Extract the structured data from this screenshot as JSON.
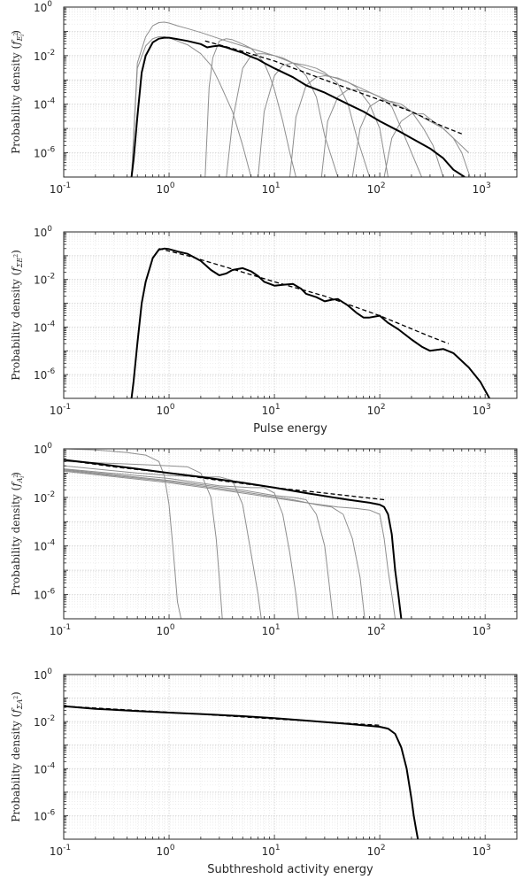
{
  "chart_data": [
    {
      "type": "line",
      "panel": 1,
      "xscale": "log",
      "yscale": "log",
      "xlim": [
        0.1,
        2000
      ],
      "ylim": [
        1e-07,
        1
      ],
      "grid": true,
      "xlabel": "",
      "ylabel": {
        "main": "Probability density",
        "sym": "f",
        "sub": "E",
        "sub_sup": "2",
        "sub_index": "i"
      },
      "xticks": [
        {
          "base": "10",
          "exp": "-1"
        },
        {
          "base": "10",
          "exp": "0"
        },
        {
          "base": "10",
          "exp": "1"
        },
        {
          "base": "10",
          "exp": "2"
        },
        {
          "base": "10",
          "exp": "3"
        }
      ],
      "yticks": [
        {
          "base": "10",
          "exp": "-6"
        },
        {
          "base": "10",
          "exp": "-4"
        },
        {
          "base": "10",
          "exp": "-2"
        },
        {
          "base": "10",
          "exp": "0"
        }
      ],
      "series": [
        {
          "style": "thin-gray",
          "x": [
            0.44,
            0.5,
            0.6,
            0.7,
            0.8,
            0.9,
            1.0,
            1.2,
            1.5,
            2,
            3,
            5,
            10,
            20,
            50,
            100,
            200,
            400,
            700
          ],
          "y": [
            1e-07,
            0.005,
            0.06,
            0.17,
            0.23,
            0.24,
            0.22,
            0.17,
            0.13,
            0.09,
            0.05,
            0.025,
            0.01,
            0.003,
            0.0008,
            0.0002,
            5e-05,
            1e-05,
            1e-06
          ]
        },
        {
          "style": "thin-gray",
          "x": [
            0.44,
            0.5,
            0.6,
            0.7,
            0.8,
            0.9,
            1.0,
            1.2,
            1.5,
            2.0,
            2.5,
            3.0,
            4.0,
            5.0,
            6.0,
            7.0,
            8.0
          ],
          "y": [
            1e-07,
            0.003,
            0.025,
            0.05,
            0.06,
            0.06,
            0.055,
            0.04,
            0.028,
            0.012,
            0.004,
            0.0008,
            5e-05,
            2e-06,
            1e-07,
            1e-07,
            1e-07
          ]
        },
        {
          "style": "thin-gray",
          "x": [
            2.2,
            2.4,
            2.6,
            3,
            3.5,
            4,
            5,
            6,
            7,
            8,
            9,
            10,
            12,
            14,
            16,
            20
          ],
          "y": [
            1e-07,
            0.0005,
            0.008,
            0.04,
            0.05,
            0.045,
            0.03,
            0.02,
            0.01,
            0.005,
            0.0015,
            0.0004,
            2e-05,
            1e-06,
            1e-07,
            1e-07
          ]
        },
        {
          "style": "thin-gray",
          "x": [
            3.5,
            4,
            5,
            6,
            7,
            8,
            10,
            12,
            15,
            20,
            25,
            30,
            40
          ],
          "y": [
            1e-07,
            2e-05,
            0.003,
            0.01,
            0.012,
            0.012,
            0.01,
            0.008,
            0.005,
            0.0015,
            0.0002,
            5e-06,
            1e-07
          ]
        },
        {
          "style": "thin-gray",
          "x": [
            7,
            8,
            10,
            12,
            15,
            20,
            25,
            30,
            40,
            50,
            60,
            80
          ],
          "y": [
            1e-07,
            5e-05,
            0.0015,
            0.004,
            0.005,
            0.004,
            0.003,
            0.002,
            0.0007,
            0.0001,
            5e-06,
            1e-07
          ]
        },
        {
          "style": "thin-gray",
          "x": [
            14,
            16,
            20,
            25,
            30,
            40,
            50,
            60,
            80,
            100,
            120,
            150
          ],
          "y": [
            1e-07,
            3e-05,
            0.0006,
            0.0013,
            0.0015,
            0.0012,
            0.0008,
            0.0005,
            0.0001,
            1e-05,
            1e-07,
            1e-07
          ]
        },
        {
          "style": "thin-gray",
          "x": [
            28,
            32,
            40,
            50,
            60,
            80,
            100,
            130,
            160,
            200,
            250
          ],
          "y": [
            1e-07,
            2e-05,
            0.0002,
            0.0004,
            0.0004,
            0.0003,
            0.0002,
            8e-05,
            1e-05,
            1e-06,
            1e-07
          ]
        },
        {
          "style": "thin-gray",
          "x": [
            55,
            65,
            80,
            100,
            130,
            160,
            200,
            260,
            320,
            400
          ],
          "y": [
            1e-07,
            1e-05,
            8e-05,
            0.00015,
            0.00013,
            0.0001,
            5e-05,
            1e-05,
            2e-06,
            1e-07
          ]
        },
        {
          "style": "thin-gray",
          "x": [
            110,
            130,
            160,
            200,
            260,
            320,
            400,
            500,
            600,
            720
          ],
          "y": [
            1e-07,
            4e-06,
            2e-05,
            4e-05,
            4e-05,
            2e-05,
            1e-05,
            4e-06,
            1e-06,
            1e-07
          ]
        },
        {
          "style": "thick-black",
          "x": [
            0.44,
            0.46,
            0.5,
            0.55,
            0.6,
            0.7,
            0.8,
            0.9,
            1.0,
            1.2,
            1.5,
            2.0,
            2.3,
            2.6,
            3.0,
            3.5,
            4.0,
            5.0,
            6.0,
            7.0,
            8.0,
            10,
            15,
            20,
            30,
            50,
            70,
            100,
            150,
            200,
            300,
            400,
            500,
            640
          ],
          "y": [
            1e-07,
            5e-07,
            3e-05,
            0.002,
            0.01,
            0.035,
            0.05,
            0.055,
            0.055,
            0.048,
            0.04,
            0.03,
            0.022,
            0.024,
            0.026,
            0.022,
            0.018,
            0.013,
            0.009,
            0.007,
            0.005,
            0.003,
            0.0013,
            0.0006,
            0.0003,
            0.0001,
            5e-05,
            2e-05,
            8e-06,
            4e-06,
            1.5e-06,
            6e-07,
            2e-07,
            1e-07
          ]
        },
        {
          "style": "dashed",
          "x": [
            2.2,
            5,
            10,
            30,
            100,
            200,
            400,
            600
          ],
          "y": [
            0.04,
            0.015,
            0.006,
            0.001,
            0.00015,
            5e-05,
            1.2e-05,
            6e-06
          ]
        }
      ]
    },
    {
      "type": "line",
      "panel": 2,
      "xscale": "log",
      "yscale": "log",
      "xlim": [
        0.1,
        2000
      ],
      "ylim": [
        1e-07,
        1
      ],
      "grid": true,
      "xlabel": "Pulse energy",
      "ylabel": {
        "main": "Probability density",
        "sym": "f",
        "sub": "ΣE",
        "sub_sup": "2",
        "sub_index": ""
      },
      "xticks": [
        {
          "base": "10",
          "exp": "-1"
        },
        {
          "base": "10",
          "exp": "0"
        },
        {
          "base": "10",
          "exp": "1"
        },
        {
          "base": "10",
          "exp": "2"
        },
        {
          "base": "10",
          "exp": "3"
        }
      ],
      "yticks": [
        {
          "base": "10",
          "exp": "-6"
        },
        {
          "base": "10",
          "exp": "-4"
        },
        {
          "base": "10",
          "exp": "-2"
        },
        {
          "base": "10",
          "exp": "0"
        }
      ],
      "series": [
        {
          "style": "thick-black",
          "x": [
            0.44,
            0.46,
            0.5,
            0.55,
            0.6,
            0.7,
            0.8,
            0.9,
            1.0,
            1.2,
            1.5,
            2.0,
            2.5,
            3.0,
            3.5,
            4.0,
            5.0,
            6.0,
            7.0,
            8.0,
            10,
            12,
            15,
            18,
            20,
            25,
            30,
            35,
            40,
            50,
            60,
            70,
            80,
            100,
            120,
            150,
            200,
            250,
            300,
            400,
            500,
            700,
            900,
            1100
          ],
          "y": [
            1e-07,
            5e-07,
            2e-05,
            0.001,
            0.008,
            0.08,
            0.18,
            0.2,
            0.19,
            0.15,
            0.12,
            0.06,
            0.025,
            0.015,
            0.018,
            0.025,
            0.03,
            0.022,
            0.014,
            0.008,
            0.0055,
            0.006,
            0.0065,
            0.004,
            0.0025,
            0.0018,
            0.0012,
            0.0014,
            0.0015,
            0.0008,
            0.0004,
            0.00025,
            0.00025,
            0.0003,
            0.00015,
            8e-05,
            3e-05,
            1.5e-05,
            1e-05,
            1.2e-05,
            8e-06,
            2e-06,
            5e-07,
            1e-07
          ]
        },
        {
          "style": "dashed",
          "x": [
            0.8,
            1.5,
            3,
            10,
            30,
            100,
            300,
            450
          ],
          "y": [
            0.2,
            0.1,
            0.04,
            0.008,
            0.002,
            0.0003,
            4e-05,
            2e-05
          ]
        }
      ]
    },
    {
      "type": "line",
      "panel": 3,
      "xscale": "log",
      "yscale": "log",
      "xlim": [
        0.1,
        2000
      ],
      "ylim": [
        1e-07,
        1
      ],
      "grid": true,
      "xlabel": "",
      "ylabel": {
        "main": "Probability density",
        "sym": "f",
        "sub": "A",
        "sub_sup": "2",
        "sub_index": "i"
      },
      "xticks": [
        {
          "base": "10",
          "exp": "-1"
        },
        {
          "base": "10",
          "exp": "0"
        },
        {
          "base": "10",
          "exp": "1"
        },
        {
          "base": "10",
          "exp": "2"
        },
        {
          "base": "10",
          "exp": "3"
        }
      ],
      "yticks": [
        {
          "base": "10",
          "exp": "-6"
        },
        {
          "base": "10",
          "exp": "-4"
        },
        {
          "base": "10",
          "exp": "-2"
        },
        {
          "base": "10",
          "exp": "0"
        }
      ],
      "series": [
        {
          "style": "thin-gray",
          "x": [
            0.1,
            0.2,
            0.4,
            0.6,
            0.8,
            0.9,
            1.0,
            1.1,
            1.2,
            1.3
          ],
          "y": [
            1.0,
            0.9,
            0.7,
            0.55,
            0.3,
            0.08,
            0.005,
            5e-05,
            5e-07,
            1e-07
          ]
        },
        {
          "style": "thin-gray",
          "x": [
            0.1,
            0.3,
            0.6,
            1.0,
            1.5,
            2.0,
            2.5,
            2.8,
            3.0,
            3.2
          ],
          "y": [
            0.3,
            0.25,
            0.22,
            0.2,
            0.18,
            0.1,
            0.01,
            0.0002,
            5e-06,
            1e-07
          ]
        },
        {
          "style": "thin-gray",
          "x": [
            0.1,
            0.5,
            1.0,
            2.0,
            3.0,
            4.0,
            5.0,
            6.0,
            7.0,
            7.5
          ],
          "y": [
            0.2,
            0.1,
            0.08,
            0.07,
            0.07,
            0.05,
            0.005,
            5e-05,
            1e-06,
            1e-07
          ]
        },
        {
          "style": "thin-gray",
          "x": [
            0.1,
            1,
            3,
            6,
            8,
            10,
            12,
            14,
            16,
            17
          ],
          "y": [
            0.15,
            0.06,
            0.03,
            0.025,
            0.025,
            0.015,
            0.002,
            5e-05,
            1e-06,
            1e-07
          ]
        },
        {
          "style": "thin-gray",
          "x": [
            0.1,
            1,
            5,
            10,
            15,
            20,
            25,
            30,
            33,
            36
          ],
          "y": [
            0.14,
            0.05,
            0.02,
            0.012,
            0.01,
            0.008,
            0.002,
            0.0001,
            3e-06,
            1e-07
          ]
        },
        {
          "style": "thin-gray",
          "x": [
            0.1,
            1,
            5,
            15,
            25,
            35,
            45,
            55,
            65,
            72
          ],
          "y": [
            0.13,
            0.045,
            0.017,
            0.008,
            0.005,
            0.004,
            0.002,
            0.0002,
            5e-06,
            1e-07
          ]
        },
        {
          "style": "thin-gray",
          "x": [
            0.1,
            1,
            5,
            20,
            40,
            60,
            80,
            100,
            110,
            120,
            130,
            140
          ],
          "y": [
            0.12,
            0.04,
            0.015,
            0.006,
            0.004,
            0.0035,
            0.003,
            0.002,
            0.0002,
            1e-05,
            1e-06,
            1e-07
          ]
        },
        {
          "style": "thick-black",
          "x": [
            0.1,
            0.2,
            0.5,
            1,
            2,
            5,
            10,
            20,
            50,
            80,
            100,
            110,
            120,
            130,
            140,
            150,
            155,
            160
          ],
          "y": [
            0.35,
            0.25,
            0.15,
            0.1,
            0.07,
            0.04,
            0.025,
            0.015,
            0.008,
            0.006,
            0.005,
            0.004,
            0.002,
            0.0003,
            1e-05,
            1e-06,
            3e-07,
            1e-07
          ]
        },
        {
          "style": "dashed",
          "x": [
            0.1,
            0.3,
            1,
            3,
            10,
            30,
            110
          ],
          "y": [
            0.35,
            0.18,
            0.1,
            0.05,
            0.025,
            0.015,
            0.008
          ]
        }
      ]
    },
    {
      "type": "line",
      "panel": 4,
      "xscale": "log",
      "yscale": "log",
      "xlim": [
        0.1,
        2000
      ],
      "ylim": [
        1e-07,
        1
      ],
      "grid": true,
      "xlabel": "Subthreshold activity energy",
      "ylabel": {
        "main": "Probability density",
        "sym": "f",
        "sub": "ΣA",
        "sub_sup": "2",
        "sub_index": ""
      },
      "xticks": [
        {
          "base": "10",
          "exp": "-1"
        },
        {
          "base": "10",
          "exp": "0"
        },
        {
          "base": "10",
          "exp": "1"
        },
        {
          "base": "10",
          "exp": "2"
        },
        {
          "base": "10",
          "exp": "3"
        }
      ],
      "yticks": [
        {
          "base": "10",
          "exp": "-6"
        },
        {
          "base": "10",
          "exp": "-4"
        },
        {
          "base": "10",
          "exp": "-2"
        },
        {
          "base": "10",
          "exp": "0"
        }
      ],
      "series": [
        {
          "style": "thick-black",
          "x": [
            0.1,
            0.2,
            0.5,
            1,
            2,
            5,
            10,
            20,
            50,
            100,
            120,
            140,
            160,
            180,
            200,
            210,
            220,
            230
          ],
          "y": [
            0.045,
            0.035,
            0.028,
            0.024,
            0.021,
            0.017,
            0.014,
            0.011,
            0.008,
            0.006,
            0.005,
            0.003,
            0.0008,
            0.0001,
            5e-06,
            1e-06,
            3e-07,
            1e-07
          ]
        },
        {
          "style": "dashed",
          "x": [
            0.1,
            1,
            10,
            100
          ],
          "y": [
            0.045,
            0.025,
            0.013,
            0.007
          ]
        }
      ]
    }
  ]
}
